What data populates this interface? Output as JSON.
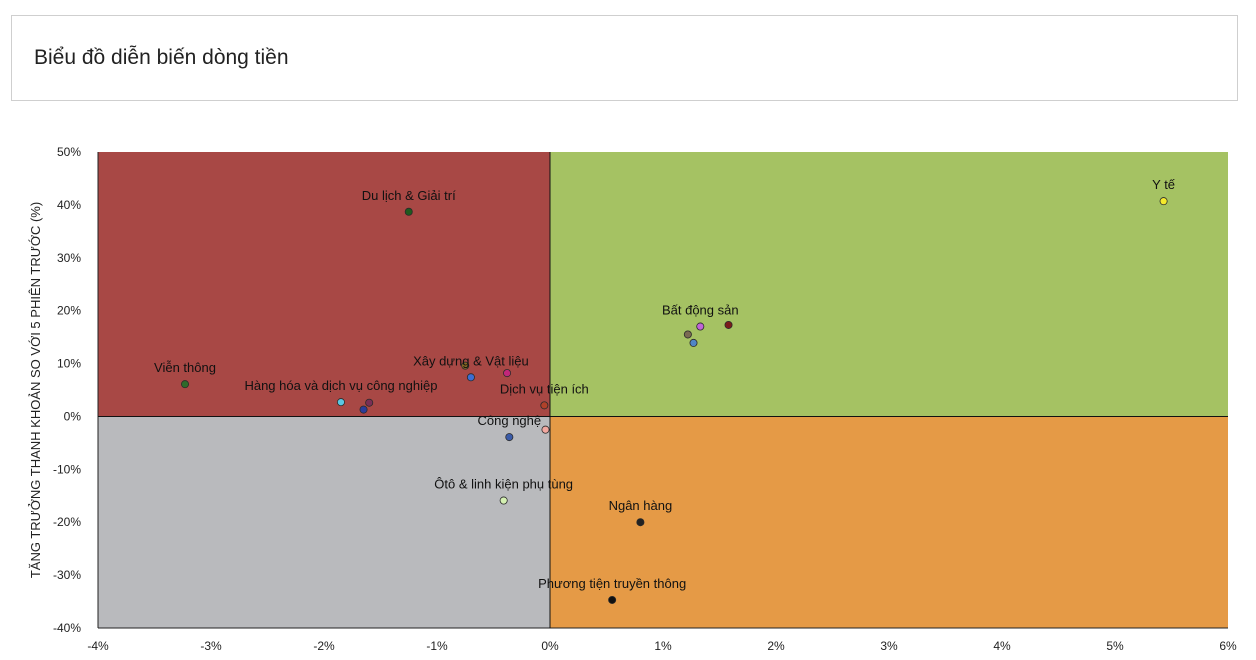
{
  "page": {
    "title": "Biểu đồ diễn biến dòng tiền"
  },
  "chart_data": {
    "type": "scatter",
    "title": "Biểu đồ diễn biến dòng tiền",
    "xlabel": "",
    "ylabel": "TĂNG TRƯỞNG THANH KHOẢN SO VỚI 5 PHIÊN TRƯỚC (%)",
    "xlim": [
      -4,
      6
    ],
    "ylim": [
      -40,
      50
    ],
    "x_ticks": [
      -4,
      -3,
      -2,
      -1,
      0,
      1,
      2,
      3,
      4,
      5,
      6
    ],
    "y_ticks": [
      -40,
      -30,
      -20,
      -10,
      0,
      10,
      20,
      30,
      40,
      50
    ],
    "tick_suffix": "%",
    "grid": false,
    "quadrant_colors": {
      "top_left": "#a84845",
      "top_right": "#a5c263",
      "bottom_left": "#b9babd",
      "bottom_right": "#e59a46"
    },
    "points": [
      {
        "x": -1.25,
        "y": 38.7,
        "color": "#1e5a1e",
        "label": "Du lịch & Giải trí"
      },
      {
        "x": -3.23,
        "y": 6.1,
        "color": "#2f6a2a",
        "label": "Viễn thông"
      },
      {
        "x": -1.85,
        "y": 2.7,
        "color": "#5bc8e3",
        "label": "Hàng hóa và dịch vụ công nghiệp"
      },
      {
        "x": -1.6,
        "y": 2.6,
        "color": "#7a2f55",
        "label": ""
      },
      {
        "x": -1.65,
        "y": 1.3,
        "color": "#2c3c9a",
        "label": ""
      },
      {
        "x": -0.75,
        "y": 9.6,
        "color": "#8a6a24",
        "label": ""
      },
      {
        "x": -0.7,
        "y": 7.4,
        "color": "#3b6dd3",
        "label": "Xây dựng & Vật liệu"
      },
      {
        "x": -0.38,
        "y": 8.2,
        "color": "#c2267a",
        "label": ""
      },
      {
        "x": -0.05,
        "y": 2.1,
        "color": "#b0412a",
        "label": "Dịch vụ tiện ích"
      },
      {
        "x": -0.04,
        "y": -2.5,
        "color": "#f2a8a0",
        "label": ""
      },
      {
        "x": -0.36,
        "y": -3.9,
        "color": "#3a5ba8",
        "label": "Công nghệ"
      },
      {
        "x": -0.41,
        "y": -15.9,
        "color": "#d4f0b2",
        "label": "Ôtô & linh kiện phụ tùng"
      },
      {
        "x": 0.8,
        "y": -20.0,
        "color": "#222222",
        "label": "Ngân hàng"
      },
      {
        "x": 0.55,
        "y": -34.7,
        "color": "#111111",
        "label": "Phương tiện truyền thông"
      },
      {
        "x": 1.33,
        "y": 17.0,
        "color": "#c064d8",
        "label": "Bất động sản"
      },
      {
        "x": 1.58,
        "y": 17.3,
        "color": "#7a1c1c",
        "label": ""
      },
      {
        "x": 1.22,
        "y": 15.5,
        "color": "#7a6a52",
        "label": ""
      },
      {
        "x": 1.27,
        "y": 13.9,
        "color": "#4f86c6",
        "label": ""
      },
      {
        "x": 5.43,
        "y": 40.7,
        "color": "#f5ea2c",
        "label": "Y tế"
      }
    ]
  }
}
